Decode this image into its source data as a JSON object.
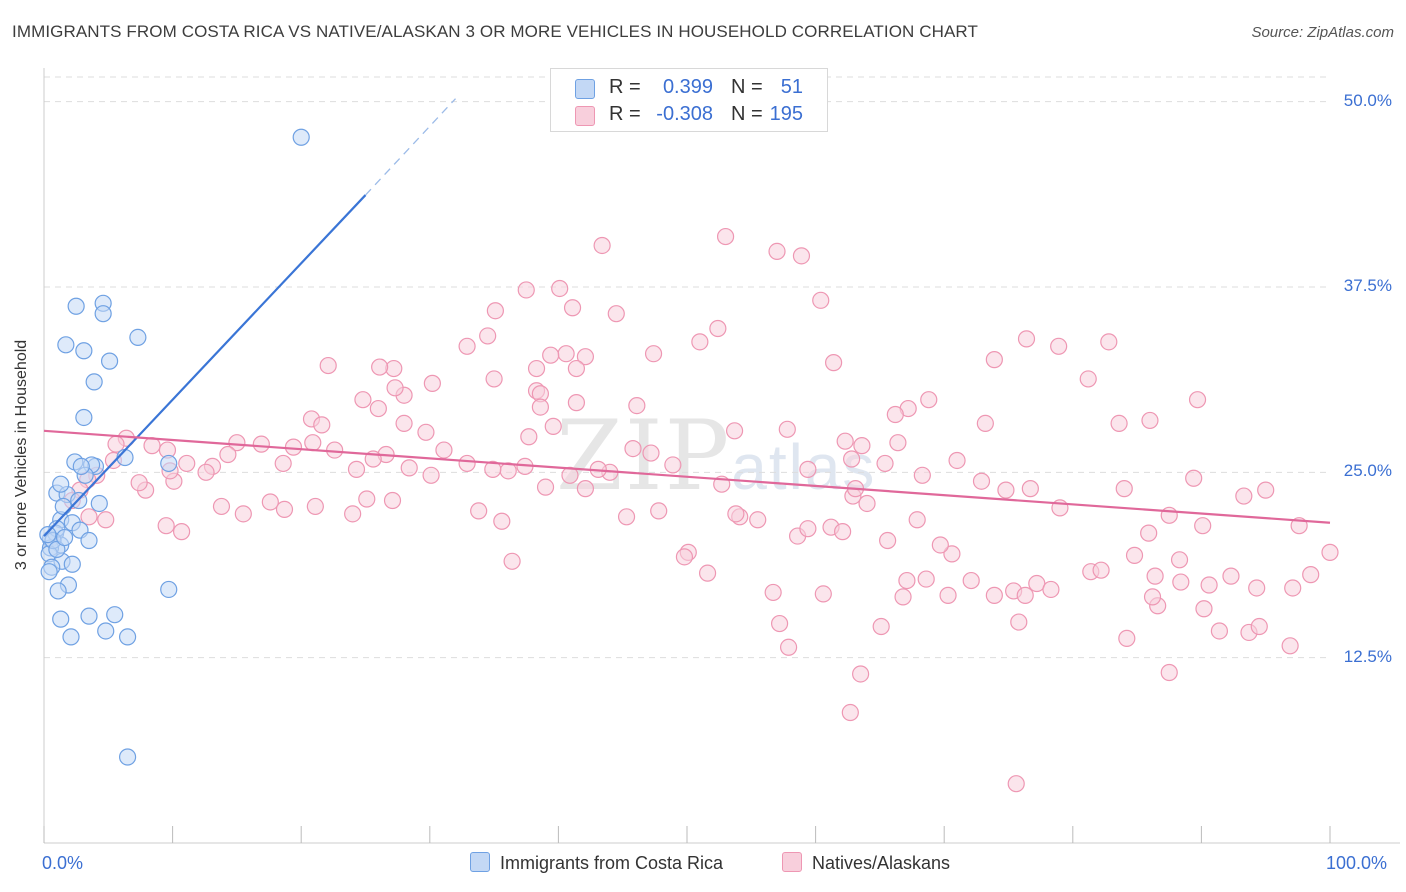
{
  "header": {
    "title": "IMMIGRANTS FROM COSTA RICA VS NATIVE/ALASKAN 3 OR MORE VEHICLES IN HOUSEHOLD CORRELATION CHART",
    "source": "Source: ZipAtlas.com"
  },
  "watermark": {
    "zip": "ZIP",
    "atlas": "atlas"
  },
  "legend": {
    "rows": [
      {
        "r_label": "R =",
        "r_value": "0.399",
        "n_label": "N =",
        "n_value": "51",
        "color": "#aac8ef"
      },
      {
        "r_label": "R =",
        "r_value": "-0.308",
        "n_label": "N =",
        "n_value": "195",
        "color": "#f4b8c9"
      }
    ]
  },
  "bottom_legend": {
    "series1": "Immigrants from Costa Rica",
    "series2": "Natives/Alaskans"
  },
  "axes": {
    "x_min_label": "0.0%",
    "x_max_label": "100.0%",
    "ylabel": "3 or more Vehicles in Household"
  },
  "chart_data": {
    "type": "scatter",
    "title": "IMMIGRANTS FROM COSTA RICA VS NATIVE/ALASKAN 3 OR MORE VEHICLES IN HOUSEHOLD CORRELATION CHART",
    "xlabel": "",
    "ylabel": "3 or more Vehicles in Household",
    "xlim": [
      0,
      100
    ],
    "ylim": [
      0,
      52
    ],
    "y_ticks": [
      {
        "value": 12.5,
        "label": "12.5%"
      },
      {
        "value": 25,
        "label": "25.0%"
      },
      {
        "value": 37.5,
        "label": "37.5%"
      },
      {
        "value": 50,
        "label": "50.0%"
      }
    ],
    "x_ticks": [
      0,
      10,
      20,
      30,
      40,
      50,
      60,
      70,
      80,
      90,
      100
    ],
    "grid": true,
    "colors": {
      "series1": "#6fa1e3",
      "series1_fill": "#c3d8f5",
      "series1_line": "#3a75d6",
      "series2": "#ee97b3",
      "series2_fill": "#f8cfdc",
      "series2_line": "#e0689a"
    },
    "series": [
      {
        "name": "Immigrants from Costa Rica",
        "points": [
          [
            20.0,
            47.6
          ],
          [
            2.5,
            36.2
          ],
          [
            4.6,
            36.4
          ],
          [
            4.6,
            35.7
          ],
          [
            1.7,
            33.6
          ],
          [
            3.1,
            33.2
          ],
          [
            7.3,
            34.1
          ],
          [
            5.1,
            32.5
          ],
          [
            3.9,
            31.1
          ],
          [
            3.1,
            28.7
          ],
          [
            1.0,
            23.6
          ],
          [
            6.3,
            26.0
          ],
          [
            4.0,
            25.4
          ],
          [
            3.7,
            25.5
          ],
          [
            2.4,
            25.7
          ],
          [
            1.8,
            23.5
          ],
          [
            1.3,
            24.2
          ],
          [
            1.3,
            21.8
          ],
          [
            0.5,
            20.5
          ],
          [
            0.9,
            20.9
          ],
          [
            1.0,
            21.2
          ],
          [
            2.2,
            21.6
          ],
          [
            2.8,
            21.1
          ],
          [
            3.5,
            20.4
          ],
          [
            1.3,
            20.1
          ],
          [
            0.5,
            19.9
          ],
          [
            0.4,
            19.5
          ],
          [
            1.4,
            19.0
          ],
          [
            0.6,
            18.6
          ],
          [
            0.4,
            18.3
          ],
          [
            2.2,
            18.8
          ],
          [
            1.9,
            17.4
          ],
          [
            1.1,
            17.0
          ],
          [
            9.7,
            25.6
          ],
          [
            9.7,
            17.1
          ],
          [
            1.3,
            15.1
          ],
          [
            3.5,
            15.3
          ],
          [
            5.5,
            15.4
          ],
          [
            2.1,
            13.9
          ],
          [
            4.8,
            14.3
          ],
          [
            6.5,
            13.9
          ],
          [
            6.5,
            5.8
          ],
          [
            3.2,
            24.8
          ],
          [
            2.9,
            25.4
          ],
          [
            1.5,
            22.7
          ],
          [
            0.7,
            20.4
          ],
          [
            2.7,
            23.1
          ],
          [
            1.0,
            19.8
          ],
          [
            0.3,
            20.8
          ],
          [
            4.3,
            22.9
          ],
          [
            1.6,
            20.6
          ]
        ]
      },
      {
        "name": "Natives/Alaskans",
        "points": [
          [
            43.4,
            40.3
          ],
          [
            53.0,
            40.9
          ],
          [
            57.0,
            39.9
          ],
          [
            58.9,
            39.6
          ],
          [
            40.1,
            37.4
          ],
          [
            37.5,
            37.3
          ],
          [
            41.1,
            36.1
          ],
          [
            60.4,
            36.6
          ],
          [
            35.1,
            35.9
          ],
          [
            44.5,
            35.7
          ],
          [
            52.4,
            34.7
          ],
          [
            34.5,
            34.2
          ],
          [
            32.9,
            33.5
          ],
          [
            51.0,
            33.8
          ],
          [
            40.6,
            33.0
          ],
          [
            47.4,
            33.0
          ],
          [
            42.1,
            32.8
          ],
          [
            39.4,
            32.9
          ],
          [
            41.4,
            32.0
          ],
          [
            38.3,
            32.0
          ],
          [
            22.1,
            32.2
          ],
          [
            35.0,
            31.3
          ],
          [
            30.2,
            31.0
          ],
          [
            27.2,
            32.0
          ],
          [
            26.1,
            32.1
          ],
          [
            38.3,
            30.5
          ],
          [
            38.6,
            30.3
          ],
          [
            41.4,
            29.7
          ],
          [
            28.0,
            30.2
          ],
          [
            27.3,
            30.7
          ],
          [
            26.0,
            29.3
          ],
          [
            24.8,
            29.9
          ],
          [
            20.8,
            28.6
          ],
          [
            21.6,
            28.2
          ],
          [
            28.0,
            28.3
          ],
          [
            29.7,
            27.7
          ],
          [
            38.6,
            29.4
          ],
          [
            37.7,
            27.4
          ],
          [
            39.6,
            28.1
          ],
          [
            46.1,
            29.5
          ],
          [
            53.7,
            27.8
          ],
          [
            57.8,
            27.9
          ],
          [
            61.4,
            32.4
          ],
          [
            73.9,
            32.6
          ],
          [
            78.9,
            33.5
          ],
          [
            76.4,
            34.0
          ],
          [
            82.8,
            33.8
          ],
          [
            81.2,
            31.3
          ],
          [
            83.6,
            28.3
          ],
          [
            86.0,
            28.5
          ],
          [
            89.7,
            29.9
          ],
          [
            73.2,
            28.3
          ],
          [
            68.8,
            29.9
          ],
          [
            67.2,
            29.3
          ],
          [
            66.2,
            28.9
          ],
          [
            63.6,
            26.8
          ],
          [
            62.8,
            25.9
          ],
          [
            59.4,
            25.2
          ],
          [
            62.3,
            27.1
          ],
          [
            66.4,
            27.0
          ],
          [
            71.0,
            25.8
          ],
          [
            72.9,
            24.4
          ],
          [
            74.8,
            23.8
          ],
          [
            76.7,
            23.9
          ],
          [
            79.0,
            22.6
          ],
          [
            84.0,
            23.9
          ],
          [
            87.5,
            22.1
          ],
          [
            89.4,
            24.6
          ],
          [
            90.1,
            21.4
          ],
          [
            93.3,
            23.4
          ],
          [
            95.0,
            23.8
          ],
          [
            97.6,
            21.4
          ],
          [
            98.5,
            18.1
          ],
          [
            100.0,
            19.6
          ],
          [
            97.1,
            17.2
          ],
          [
            94.3,
            17.2
          ],
          [
            90.6,
            17.4
          ],
          [
            88.4,
            17.6
          ],
          [
            86.4,
            18.0
          ],
          [
            84.8,
            19.4
          ],
          [
            81.4,
            18.3
          ],
          [
            77.2,
            17.5
          ],
          [
            78.3,
            17.1
          ],
          [
            75.4,
            17.0
          ],
          [
            72.1,
            17.7
          ],
          [
            70.6,
            19.5
          ],
          [
            69.7,
            20.1
          ],
          [
            67.9,
            21.8
          ],
          [
            65.4,
            25.6
          ],
          [
            68.3,
            24.8
          ],
          [
            62.9,
            23.4
          ],
          [
            61.2,
            21.3
          ],
          [
            58.6,
            20.7
          ],
          [
            55.5,
            21.8
          ],
          [
            54.1,
            22.0
          ],
          [
            52.7,
            24.2
          ],
          [
            48.9,
            25.5
          ],
          [
            47.2,
            26.3
          ],
          [
            45.8,
            26.6
          ],
          [
            44.0,
            25.0
          ],
          [
            43.1,
            25.2
          ],
          [
            42.1,
            23.9
          ],
          [
            40.9,
            24.8
          ],
          [
            39.0,
            24.0
          ],
          [
            37.4,
            25.4
          ],
          [
            36.1,
            25.1
          ],
          [
            34.9,
            25.2
          ],
          [
            32.9,
            25.6
          ],
          [
            31.1,
            26.5
          ],
          [
            30.1,
            24.8
          ],
          [
            28.4,
            25.3
          ],
          [
            26.6,
            26.2
          ],
          [
            25.6,
            25.9
          ],
          [
            24.3,
            25.2
          ],
          [
            22.6,
            26.5
          ],
          [
            20.9,
            27.0
          ],
          [
            19.4,
            26.7
          ],
          [
            18.6,
            25.6
          ],
          [
            16.9,
            26.9
          ],
          [
            15.0,
            27.0
          ],
          [
            14.3,
            26.2
          ],
          [
            13.1,
            25.4
          ],
          [
            12.6,
            25.0
          ],
          [
            11.1,
            25.6
          ],
          [
            10.1,
            24.4
          ],
          [
            9.8,
            25.1
          ],
          [
            9.6,
            26.5
          ],
          [
            8.4,
            26.8
          ],
          [
            7.9,
            23.8
          ],
          [
            7.4,
            24.3
          ],
          [
            6.4,
            27.3
          ],
          [
            5.6,
            26.9
          ],
          [
            5.4,
            25.8
          ],
          [
            4.1,
            24.8
          ],
          [
            3.4,
            24.5
          ],
          [
            2.8,
            23.8
          ],
          [
            2.2,
            23.1
          ],
          [
            3.5,
            22.0
          ],
          [
            4.8,
            21.8
          ],
          [
            9.5,
            21.4
          ],
          [
            10.7,
            21.0
          ],
          [
            13.8,
            22.7
          ],
          [
            15.5,
            22.2
          ],
          [
            17.6,
            23.0
          ],
          [
            18.7,
            22.5
          ],
          [
            21.1,
            22.7
          ],
          [
            24.0,
            22.2
          ],
          [
            25.1,
            23.2
          ],
          [
            27.1,
            23.1
          ],
          [
            35.6,
            21.7
          ],
          [
            33.8,
            22.4
          ],
          [
            36.4,
            19.0
          ],
          [
            45.3,
            22.0
          ],
          [
            47.8,
            22.4
          ],
          [
            50.1,
            19.6
          ],
          [
            49.8,
            19.3
          ],
          [
            53.8,
            22.2
          ],
          [
            59.4,
            21.2
          ],
          [
            63.1,
            23.9
          ],
          [
            64.0,
            22.9
          ],
          [
            65.6,
            20.4
          ],
          [
            62.1,
            21.0
          ],
          [
            56.7,
            16.9
          ],
          [
            60.6,
            16.8
          ],
          [
            67.1,
            17.7
          ],
          [
            66.8,
            16.6
          ],
          [
            68.6,
            17.8
          ],
          [
            73.9,
            16.7
          ],
          [
            76.3,
            16.7
          ],
          [
            82.2,
            18.4
          ],
          [
            86.6,
            16.0
          ],
          [
            90.2,
            15.8
          ],
          [
            91.4,
            14.3
          ],
          [
            93.7,
            14.2
          ],
          [
            94.5,
            14.6
          ],
          [
            96.9,
            13.3
          ],
          [
            92.3,
            18.0
          ],
          [
            88.3,
            19.1
          ],
          [
            86.2,
            16.6
          ],
          [
            57.2,
            14.8
          ],
          [
            57.9,
            13.2
          ],
          [
            65.1,
            14.6
          ],
          [
            70.3,
            16.7
          ],
          [
            75.8,
            14.9
          ],
          [
            84.2,
            13.8
          ],
          [
            87.5,
            11.5
          ],
          [
            63.5,
            11.4
          ],
          [
            62.7,
            8.8
          ],
          [
            75.6,
            4.0
          ],
          [
            85.9,
            20.9
          ],
          [
            51.6,
            18.2
          ]
        ]
      }
    ],
    "trendlines": [
      {
        "series": "Immigrants from Costa Rica",
        "from": [
          0.0,
          20.7
        ],
        "to": [
          25.0,
          43.7
        ],
        "dashed_to": [
          32.0,
          50.2
        ]
      },
      {
        "series": "Natives/Alaskans",
        "from": [
          0.0,
          27.8
        ],
        "to": [
          100.0,
          21.6
        ]
      }
    ]
  }
}
